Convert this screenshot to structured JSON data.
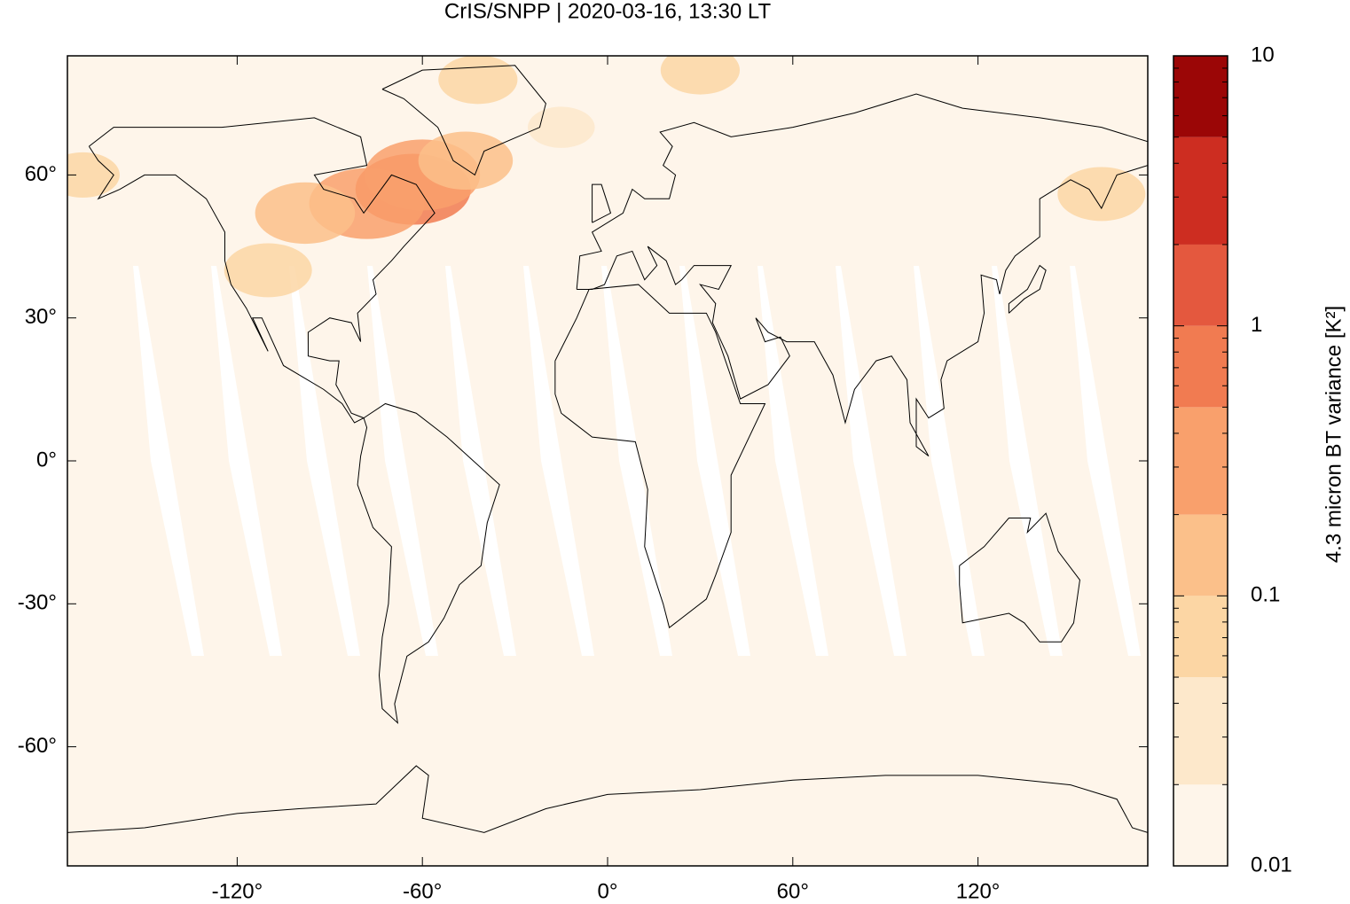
{
  "chart_data": {
    "type": "map",
    "title": "CrIS/SNPP | 2020-03-16, 13:30 LT",
    "xlim": [
      -175,
      175
    ],
    "ylim": [
      -85,
      85
    ],
    "xticks": [
      {
        "value": -120,
        "label": "-120°"
      },
      {
        "value": -60,
        "label": "-60°"
      },
      {
        "value": 0,
        "label": "0°"
      },
      {
        "value": 60,
        "label": "60°"
      },
      {
        "value": 120,
        "label": "120°"
      }
    ],
    "yticks": [
      {
        "value": 60,
        "label": "60°"
      },
      {
        "value": 30,
        "label": "30°"
      },
      {
        "value": 0,
        "label": "0°"
      },
      {
        "value": -30,
        "label": "-30°"
      },
      {
        "value": -60,
        "label": "-60°"
      }
    ],
    "colorbar": {
      "label": "4.3 micron BT variance [K²]",
      "log": true,
      "lim": [
        0.01,
        10
      ],
      "ticks": [
        0.01,
        0.1,
        1,
        10
      ],
      "levels": [
        0.01,
        0.02,
        0.05,
        0.1,
        0.2,
        0.5,
        1,
        2,
        5,
        10
      ],
      "colors": [
        "#fef5ea",
        "#fde8cb",
        "#fcd6a4",
        "#fbc08a",
        "#f9a06c",
        "#f17b51",
        "#e4583e",
        "#cd2d21",
        "#9b0606"
      ]
    },
    "field": {
      "lon": [
        -63,
        -60,
        -78,
        -98,
        -46,
        -110,
        -42,
        -15,
        30,
        160,
        -170
      ],
      "lat": [
        57,
        60,
        54,
        52,
        63,
        40,
        80,
        70,
        82,
        56,
        60
      ],
      "values": [
        0.6,
        0.3,
        0.2,
        0.12,
        0.1,
        0.08,
        0.06,
        0.04,
        0.06,
        0.08,
        0.05
      ]
    }
  }
}
